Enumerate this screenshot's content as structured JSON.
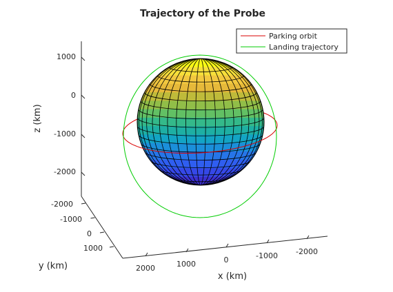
{
  "chart_data": {
    "type": "line",
    "title": "Trajectory of the Probe",
    "xlabel": "x (km)",
    "ylabel": "y (km)",
    "zlabel": "z (km)",
    "x_ticks": [
      "2000",
      "1000",
      "0",
      "-1000",
      "-2000"
    ],
    "y_ticks": [
      "-2000",
      "-1000",
      "0",
      "1000"
    ],
    "z_ticks": [
      "1000",
      "0",
      "-1000",
      "-2000"
    ],
    "grid": false,
    "legend_position": "top-right",
    "sphere": {
      "radius_km": 1737,
      "colormap": "parula"
    },
    "series": [
      {
        "name": "Parking orbit",
        "color": "#d90000",
        "shape": "circle",
        "altitude_km": 300,
        "inclination_deg": 0
      },
      {
        "name": "Landing trajectory",
        "color": "#00cc00",
        "shape": "ellipse",
        "inclination_deg": 90
      }
    ]
  }
}
